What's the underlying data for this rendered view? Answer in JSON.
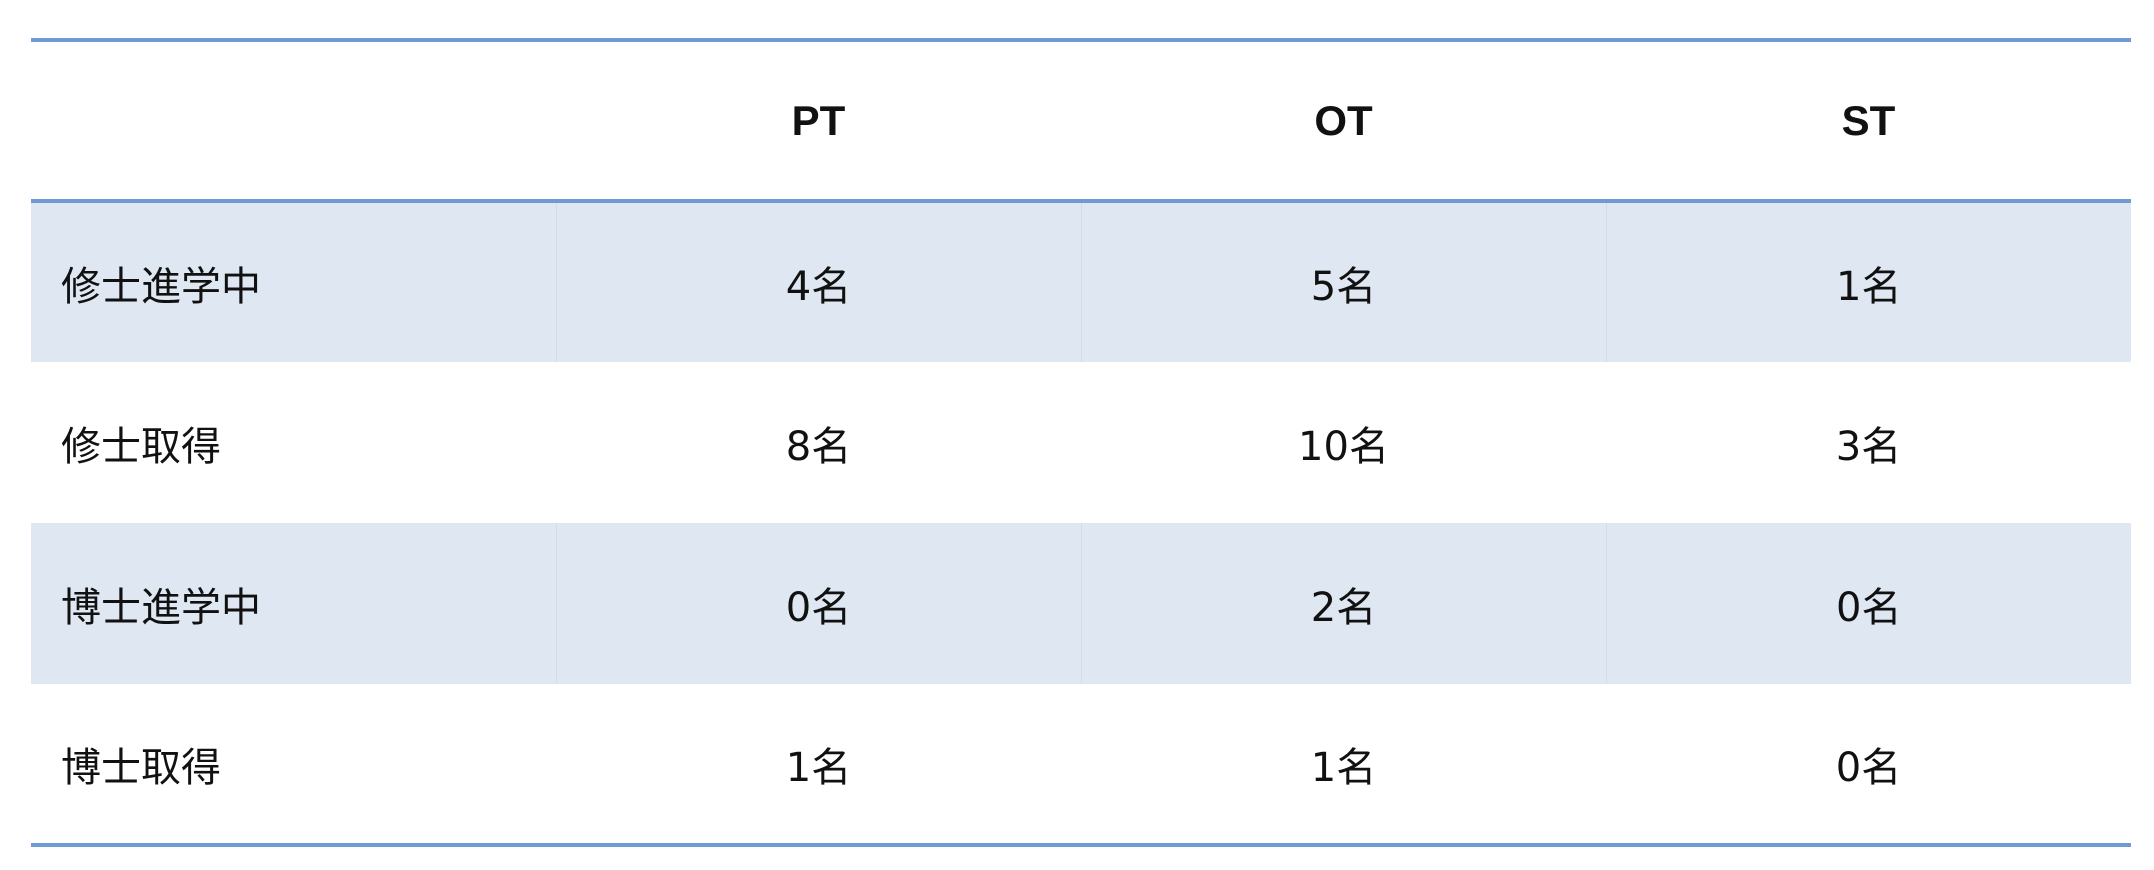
{
  "table": {
    "columns": [
      "",
      "PT",
      "OT",
      "ST"
    ],
    "rows": [
      {
        "label": "修士進学中",
        "values": [
          "4名",
          "5名",
          "1名"
        ]
      },
      {
        "label": "修士取得",
        "values": [
          "8名",
          "10名",
          "3名"
        ]
      },
      {
        "label": "博士進学中",
        "values": [
          "0名",
          "2名",
          "0名"
        ]
      },
      {
        "label": "博士取得",
        "values": [
          "1名",
          "1名",
          "0名"
        ]
      }
    ]
  },
  "colors": {
    "rule": "#6f9bd2",
    "shaded_row": "#dfe8f2"
  }
}
